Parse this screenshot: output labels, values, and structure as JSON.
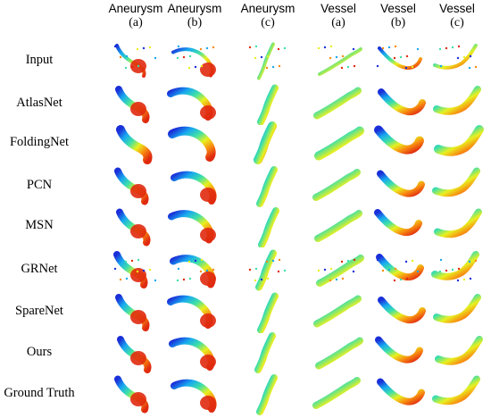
{
  "columns": [
    {
      "name": "Aneurysm",
      "sub": "(a)"
    },
    {
      "name": "Aneurysm",
      "sub": "(b)"
    },
    {
      "name": "Aneurysm",
      "sub": "(c)"
    },
    {
      "name": "Vessel",
      "sub": "(a)"
    },
    {
      "name": "Vessel",
      "sub": "(b)"
    },
    {
      "name": "Vessel",
      "sub": "(c)"
    }
  ],
  "rows": [
    "Input",
    "AtlasNet",
    "FoldingNet",
    "PCN",
    "MSN",
    "GRNet",
    "SpareNet",
    "Ours",
    "Ground Truth"
  ],
  "colormap": [
    "#1a2fd8",
    "#18a8f0",
    "#3ee0a8",
    "#e8f020",
    "#f88a10",
    "#e02a10"
  ]
}
